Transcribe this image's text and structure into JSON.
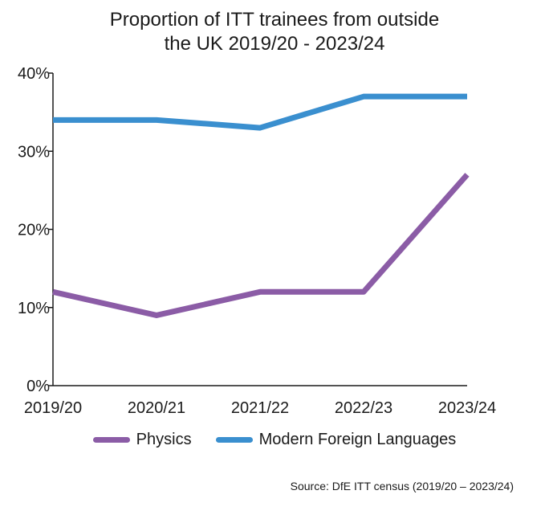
{
  "chart_data": {
    "type": "line",
    "title": [
      "Proportion of ITT trainees from outside",
      "the UK 2019/20 - 2023/24"
    ],
    "categories": [
      "2019/20",
      "2020/21",
      "2021/22",
      "2022/23",
      "2023/24"
    ],
    "y_ticks": [
      "0%",
      "10%",
      "20%",
      "30%",
      "40%"
    ],
    "ylim": [
      0,
      40
    ],
    "grid": false,
    "legend_position": "bottom",
    "series": [
      {
        "name": "Physics",
        "color": "#8B5CA6",
        "values": [
          12,
          9,
          12,
          12,
          27
        ]
      },
      {
        "name": "Modern Foreign Languages",
        "color": "#3A8FCF",
        "values": [
          34,
          34,
          33,
          37,
          37
        ]
      }
    ]
  },
  "source": "Source: DfE ITT census (2019/20 – 2023/24)"
}
